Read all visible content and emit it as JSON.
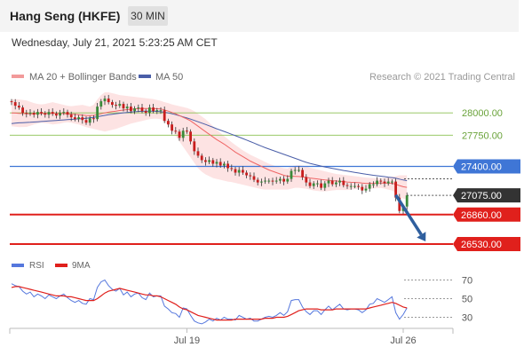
{
  "header": {
    "title": "Hang Seng (HKFE)",
    "interval": "30 MIN"
  },
  "datetime": "Wednesday, July 21, 2021 5:23:25 AM CET",
  "legend": {
    "ma20": "MA 20 + Bollinger Bands",
    "ma50": "MA 50",
    "copyright": "Research © 2021 Trading Central"
  },
  "colors": {
    "support": "#e0201c",
    "resistance": "#8cc152",
    "pivot": "#3f76d6",
    "current": "#333333",
    "candle_up": "#3a8a3a",
    "candle_down": "#c81d1d",
    "ma20": "#ef6565",
    "ma50": "#4a5ea8",
    "bollinger_fill": "#fde3e3",
    "rsi": "#5577dd",
    "rsi_ma": "#e0201c",
    "arrow": "#2f5f9e"
  },
  "chart_data": [
    {
      "type": "line",
      "title": "Hang Seng (HKFE)",
      "xlabel": "",
      "ylabel": "",
      "ylim": [
        26450,
        28300
      ],
      "x_ticks": [
        {
          "index": 47,
          "label": "Jul 19"
        },
        {
          "index": 105,
          "label": "Jul 26"
        }
      ],
      "levels": [
        {
          "value": 28000.0,
          "label": "28000.00",
          "kind": "resistance"
        },
        {
          "value": 27750.0,
          "label": "27750.00",
          "kind": "resistance"
        },
        {
          "value": 27400.0,
          "label": "27400.00",
          "kind": "pivot"
        },
        {
          "value": 27075.0,
          "label": "27075.00",
          "kind": "current"
        },
        {
          "value": 26860.0,
          "label": "26860.00",
          "kind": "support"
        },
        {
          "value": 26530.0,
          "label": "26530.00",
          "kind": "support"
        }
      ],
      "forecast_arrow": {
        "from_index": 103,
        "from_value": 27080,
        "to_index": 111,
        "to_value": 26560
      },
      "close": [
        28120,
        28080,
        28060,
        28000,
        27990,
        28000,
        27980,
        28010,
        27995,
        27980,
        28010,
        27990,
        27970,
        28000,
        28010,
        27980,
        27950,
        27930,
        27950,
        27920,
        27890,
        27940,
        27930,
        28070,
        28130,
        28160,
        28120,
        28090,
        28080,
        28100,
        28050,
        28070,
        28020,
        28050,
        28060,
        28020,
        28000,
        28060,
        28020,
        28030,
        28030,
        27910,
        27870,
        27800,
        27790,
        27720,
        27800,
        27790,
        27680,
        27570,
        27520,
        27470,
        27450,
        27470,
        27430,
        27450,
        27410,
        27430,
        27380,
        27370,
        27330,
        27360,
        27330,
        27300,
        27290,
        27250,
        27220,
        27230,
        27240,
        27240,
        27230,
        27240,
        27260,
        27230,
        27260,
        27350,
        27360,
        27360,
        27280,
        27220,
        27180,
        27210,
        27210,
        27160,
        27210,
        27240,
        27200,
        27220,
        27240,
        27190,
        27180,
        27180,
        27180,
        27170,
        27130,
        27150,
        27200,
        27200,
        27240,
        27230,
        27210,
        27230,
        27230,
        27050,
        26900,
        26950,
        27075
      ],
      "ma20": [
        28000,
        27998,
        27995,
        27993,
        27991,
        27990,
        27991,
        27992,
        27993,
        27994,
        27995,
        27996,
        27995,
        27994,
        27993,
        27990,
        27986,
        27983,
        27979,
        27975,
        27971,
        27970,
        27972,
        27980,
        27990,
        28000,
        28008,
        28014,
        28020,
        28026,
        28031,
        28036,
        28040,
        28044,
        28047,
        28048,
        28049,
        28049,
        28048,
        28046,
        28044,
        28033,
        28020,
        28005,
        27990,
        27970,
        27950,
        27932,
        27910,
        27880,
        27850,
        27820,
        27790,
        27760,
        27730,
        27700,
        27675,
        27650,
        27620,
        27590,
        27560,
        27535,
        27510,
        27485,
        27460,
        27440,
        27420,
        27400,
        27380,
        27360,
        27345,
        27330,
        27315,
        27300,
        27290,
        27290,
        27288,
        27286,
        27282,
        27278,
        27270,
        27265,
        27260,
        27254,
        27248,
        27245,
        27240,
        27237,
        27233,
        27230,
        27225,
        27222,
        27220,
        27218,
        27213,
        27210,
        27210,
        27211,
        27213,
        27214,
        27213,
        27212,
        27211,
        27200,
        27185,
        27172,
        27165
      ],
      "ma50": [
        27880,
        27885,
        27888,
        27890,
        27892,
        27894,
        27897,
        27900,
        27903,
        27906,
        27909,
        27912,
        27915,
        27918,
        27921,
        27924,
        27927,
        27930,
        27933,
        27936,
        27939,
        27944,
        27949,
        27957,
        27965,
        27972,
        27979,
        27985,
        27991,
        27996,
        28001,
        28005,
        28009,
        28013,
        28016,
        28018,
        28019,
        28020,
        28019,
        28017,
        28013,
        28007,
        28000,
        27990,
        27980,
        27968,
        27955,
        27943,
        27930,
        27915,
        27900,
        27885,
        27870,
        27854,
        27838,
        27822,
        27807,
        27792,
        27776,
        27760,
        27744,
        27728,
        27712,
        27695,
        27678,
        27661,
        27644,
        27627,
        27610,
        27595,
        27580,
        27565,
        27550,
        27535,
        27520,
        27505,
        27490,
        27475,
        27460,
        27446,
        27434,
        27424,
        27414,
        27404,
        27394,
        27386,
        27378,
        27370,
        27362,
        27354,
        27347,
        27340,
        27333,
        27326,
        27319,
        27312,
        27306,
        27300,
        27295,
        27290,
        27285,
        27280,
        27275,
        27268,
        27258,
        27248,
        27240
      ],
      "bb_upper": [
        28150,
        28155,
        28150,
        28145,
        28140,
        28125,
        28110,
        28100,
        28095,
        28100,
        28110,
        28120,
        28110,
        28100,
        28090,
        28080,
        28075,
        28080,
        28085,
        28090,
        28080,
        28070,
        28090,
        28150,
        28200,
        28230,
        28230,
        28220,
        28210,
        28200,
        28195,
        28190,
        28185,
        28180,
        28175,
        28170,
        28165,
        28160,
        28155,
        28145,
        28135,
        28120,
        28110,
        28095,
        28085,
        28075,
        28065,
        28055,
        28040,
        28020,
        27990,
        27960,
        27930,
        27890,
        27850,
        27810,
        27775,
        27740,
        27705,
        27670,
        27640,
        27610,
        27580,
        27555,
        27530,
        27510,
        27490,
        27470,
        27450,
        27430,
        27415,
        27400,
        27390,
        27380,
        27375,
        27400,
        27410,
        27415,
        27410,
        27400,
        27385,
        27375,
        27365,
        27355,
        27345,
        27335,
        27325,
        27315,
        27310,
        27305,
        27300,
        27295,
        27290,
        27285,
        27280,
        27275,
        27272,
        27270,
        27270,
        27270,
        27275,
        27280,
        27285,
        27290,
        27300,
        27300,
        27300
      ],
      "bb_lower": [
        27850,
        27845,
        27840,
        27841,
        27842,
        27855,
        27870,
        27880,
        27890,
        27885,
        27880,
        27870,
        27875,
        27880,
        27890,
        27895,
        27890,
        27880,
        27870,
        27855,
        27840,
        27830,
        27820,
        27810,
        27800,
        27790,
        27800,
        27810,
        27820,
        27835,
        27850,
        27865,
        27880,
        27890,
        27900,
        27910,
        27920,
        27930,
        27935,
        27935,
        27930,
        27900,
        27860,
        27800,
        27740,
        27680,
        27620,
        27560,
        27500,
        27440,
        27380,
        27340,
        27310,
        27290,
        27270,
        27260,
        27250,
        27240,
        27230,
        27225,
        27215,
        27205,
        27195,
        27185,
        27175,
        27165,
        27155,
        27145,
        27140,
        27140,
        27140,
        27140,
        27140,
        27140,
        27140,
        27150,
        27160,
        27160,
        27155,
        27150,
        27140,
        27130,
        27125,
        27120,
        27120,
        27125,
        27130,
        27135,
        27135,
        27135,
        27135,
        27140,
        27145,
        27150,
        27145,
        27145,
        27150,
        27152,
        27155,
        27158,
        27150,
        27140,
        27130,
        27100,
        27060,
        27040,
        27030
      ]
    },
    {
      "type": "line",
      "title": "",
      "ylim": [
        20,
        80
      ],
      "y_ticks": [
        70,
        50,
        30
      ],
      "series": [
        {
          "name": "RSI",
          "values": [
            66,
            64,
            63,
            58,
            55,
            57,
            52,
            55,
            53,
            50,
            54,
            52,
            50,
            53,
            55,
            51,
            48,
            46,
            48,
            45,
            44,
            50,
            49,
            62,
            68,
            70,
            64,
            60,
            58,
            61,
            54,
            57,
            52,
            55,
            56,
            51,
            49,
            56,
            52,
            53,
            53,
            42,
            39,
            35,
            34,
            30,
            40,
            39,
            32,
            26,
            24,
            23,
            25,
            28,
            26,
            29,
            27,
            30,
            28,
            28,
            27,
            32,
            30,
            28,
            29,
            26,
            26,
            28,
            30,
            31,
            30,
            32,
            35,
            32,
            36,
            48,
            49,
            49,
            41,
            36,
            33,
            37,
            37,
            33,
            38,
            42,
            38,
            41,
            44,
            39,
            38,
            39,
            39,
            38,
            35,
            38,
            44,
            45,
            50,
            48,
            46,
            49,
            52,
            35,
            28,
            33,
            40
          ]
        },
        {
          "name": "9MA",
          "values": [
            62,
            63,
            63,
            62,
            61,
            60,
            59,
            58,
            57,
            56,
            55,
            54,
            53,
            53,
            53,
            52,
            52,
            51,
            50,
            49,
            48,
            48,
            48,
            50,
            53,
            56,
            58,
            59,
            60,
            61,
            60,
            59,
            58,
            57,
            56,
            55,
            54,
            54,
            53,
            53,
            52,
            50,
            48,
            46,
            44,
            41,
            39,
            38,
            36,
            34,
            32,
            31,
            30,
            29,
            28,
            27,
            27,
            27,
            27,
            27,
            28,
            28,
            28,
            28,
            28,
            28,
            28,
            28,
            29,
            29,
            29,
            30,
            30,
            30,
            31,
            33,
            35,
            37,
            38,
            39,
            39,
            39,
            39,
            38,
            38,
            38,
            38,
            39,
            39,
            39,
            39,
            39,
            39,
            39,
            39,
            39,
            40,
            41,
            42,
            43,
            44,
            45,
            46,
            45,
            43,
            41,
            40
          ]
        }
      ]
    }
  ]
}
